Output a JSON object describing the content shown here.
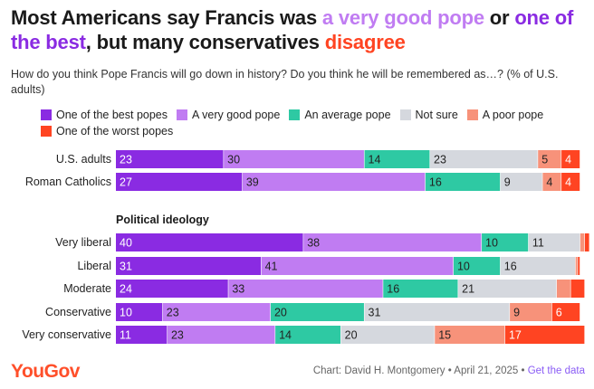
{
  "title": {
    "part1": "Most Americans say Francis was ",
    "hl1": "a very good pope",
    "part2": " or ",
    "hl2": "one of the best",
    "part3": ", but many conservatives ",
    "hl3": "disagree"
  },
  "subtitle": "How do you think Pope Francis will go down in history? Do you think he will be remembered as…? (% of U.S. adults)",
  "legend": [
    {
      "label": "One of the best popes",
      "color": "#8a2be2"
    },
    {
      "label": "A very good pope",
      "color": "#c07cf2"
    },
    {
      "label": "An average pope",
      "color": "#2ec9a3"
    },
    {
      "label": "Not sure",
      "color": "#d5d8de"
    },
    {
      "label": "A poor pope",
      "color": "#f7927a"
    },
    {
      "label": "One of the worst popes",
      "color": "#ff4422"
    }
  ],
  "colors": {
    "title_text": "#1a1a1a",
    "best": "#8a2be2",
    "very_good": "#c07cf2",
    "average": "#2ec9a3",
    "not_sure": "#d5d8de",
    "poor": "#f7927a",
    "worst": "#ff4422",
    "disagree": "#ff4422",
    "brand": "#ff4f2a",
    "link": "#8a5cf5"
  },
  "section_label": "Political ideology",
  "chart_data": {
    "type": "bar",
    "orientation": "horizontal",
    "stacked": true,
    "title": "Most Americans say Francis was a very good pope or one of the best, but many conservatives disagree",
    "categories": [
      "U.S. adults",
      "Roman Catholics",
      "Very liberal",
      "Liberal",
      "Moderate",
      "Conservative",
      "Very conservative"
    ],
    "groups": [
      {
        "label": "",
        "categories": [
          "U.S. adults",
          "Roman Catholics"
        ]
      },
      {
        "label": "Political ideology",
        "categories": [
          "Very liberal",
          "Liberal",
          "Moderate",
          "Conservative",
          "Very conservative"
        ]
      }
    ],
    "series": [
      {
        "name": "One of the best popes",
        "color": "#8a2be2",
        "values": [
          23,
          27,
          40,
          31,
          24,
          10,
          11
        ]
      },
      {
        "name": "A very good pope",
        "color": "#c07cf2",
        "values": [
          30,
          39,
          38,
          41,
          33,
          23,
          23
        ]
      },
      {
        "name": "An average pope",
        "color": "#2ec9a3",
        "values": [
          14,
          16,
          10,
          10,
          16,
          20,
          14
        ]
      },
      {
        "name": "Not sure",
        "color": "#d5d8de",
        "values": [
          23,
          9,
          11,
          16,
          21,
          31,
          20
        ]
      },
      {
        "name": "A poor pope",
        "color": "#f7927a",
        "values": [
          5,
          4,
          1,
          0.5,
          3,
          9,
          15
        ]
      },
      {
        "name": "One of the worst popes",
        "color": "#ff4422",
        "values": [
          4,
          4,
          1,
          0.5,
          3,
          6,
          17
        ]
      }
    ],
    "data_labels_min_value": 4,
    "xlim": [
      0,
      100
    ],
    "unit": "% of U.S. adults",
    "legend_position": "top"
  },
  "footer": {
    "logo": "YouGov",
    "credit": "Chart: David H. Montgomery • April 21, 2025 • ",
    "link": "Get the data"
  }
}
